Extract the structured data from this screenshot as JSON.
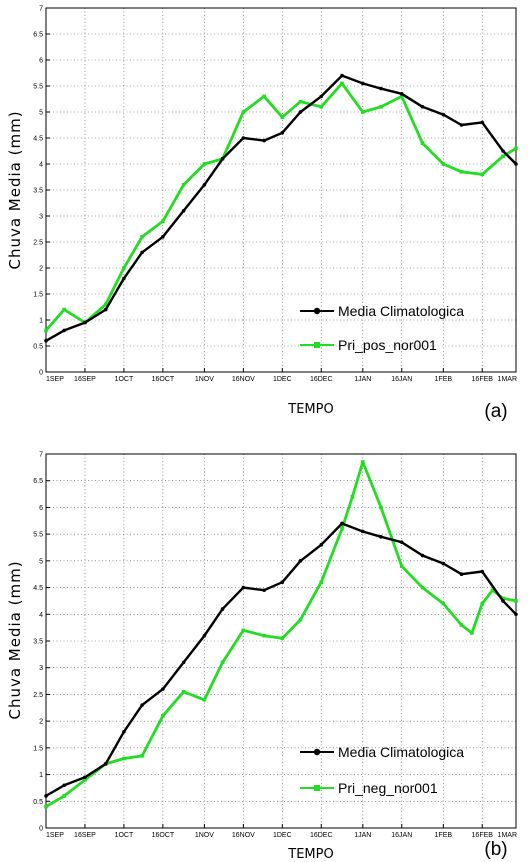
{
  "chart_data": [
    {
      "type": "line",
      "panel_label": "(a)",
      "xlabel": "TEMPO",
      "ylabel": "Chuva Media (mm)",
      "ylim": [
        0,
        7
      ],
      "yticks": [
        "0",
        "0.5",
        "1",
        "1.5",
        "2",
        "2.5",
        "3",
        "3.5",
        "4",
        "4.5",
        "5",
        "5.5",
        "6",
        "6.5",
        "7"
      ],
      "xticks": [
        "1SEP",
        "16SEP",
        "1OCT",
        "16OCT",
        "1NOV",
        "16NOV",
        "1DEC",
        "16DEC",
        "1JAN",
        "16JAN",
        "1FEB",
        "16FEB",
        "1MAR"
      ],
      "grid": true,
      "legend_position": "bottom-right",
      "series": [
        {
          "name": "Media Climatologica",
          "color": "#000000",
          "marker": "circle",
          "x": [
            "1SEP",
            "8SEP",
            "16SEP",
            "24SEP",
            "1OCT",
            "8OCT",
            "16OCT",
            "24OCT",
            "1NOV",
            "8NOV",
            "16NOV",
            "24NOV",
            "1DEC",
            "8DEC",
            "16DEC",
            "24DEC",
            "1JAN",
            "8JAN",
            "16JAN",
            "24JAN",
            "1FEB",
            "8FEB",
            "16FEB",
            "24FEB",
            "1MAR"
          ],
          "y": [
            0.6,
            0.8,
            0.95,
            1.2,
            1.8,
            2.3,
            2.6,
            3.1,
            3.6,
            4.1,
            4.5,
            4.45,
            4.6,
            5.0,
            5.3,
            5.7,
            5.55,
            5.45,
            5.35,
            5.1,
            4.95,
            4.75,
            4.8,
            4.25,
            4.0
          ]
        },
        {
          "name": "Pri_pos_nor001",
          "color": "#22dd22",
          "marker": "square",
          "x": [
            "1SEP",
            "8SEP",
            "16SEP",
            "24SEP",
            "1OCT",
            "8OCT",
            "16OCT",
            "24OCT",
            "1NOV",
            "8NOV",
            "16NOV",
            "24NOV",
            "1DEC",
            "8DEC",
            "16DEC",
            "24DEC",
            "1JAN",
            "8JAN",
            "16JAN",
            "24JAN",
            "1FEB",
            "8FEB",
            "16FEB",
            "24FEB",
            "1MAR"
          ],
          "y": [
            0.8,
            1.2,
            0.95,
            1.3,
            2.0,
            2.6,
            2.9,
            3.6,
            4.0,
            4.1,
            5.0,
            5.3,
            4.9,
            5.2,
            5.1,
            5.55,
            5.0,
            5.1,
            5.3,
            4.4,
            4.0,
            3.85,
            3.8,
            4.15,
            4.3
          ]
        }
      ]
    },
    {
      "type": "line",
      "panel_label": "(b)",
      "xlabel": "TEMPO",
      "ylabel": "Chuva Media (mm)",
      "ylim": [
        0,
        7
      ],
      "yticks": [
        "0",
        "0.5",
        "1",
        "1.5",
        "2",
        "2.5",
        "3",
        "3.5",
        "4",
        "4.5",
        "5",
        "5.5",
        "6",
        "6.5",
        "7"
      ],
      "xticks": [
        "1SEP",
        "16SEP",
        "1OCT",
        "16OCT",
        "1NOV",
        "16NOV",
        "1DEC",
        "16DEC",
        "1JAN",
        "16JAN",
        "1FEB",
        "16FEB",
        "1MAR"
      ],
      "grid": true,
      "legend_position": "bottom-right",
      "series": [
        {
          "name": "Media Climatologica",
          "color": "#000000",
          "marker": "circle",
          "x": [
            "1SEP",
            "8SEP",
            "16SEP",
            "24SEP",
            "1OCT",
            "8OCT",
            "16OCT",
            "24OCT",
            "1NOV",
            "8NOV",
            "16NOV",
            "24NOV",
            "1DEC",
            "8DEC",
            "16DEC",
            "24DEC",
            "1JAN",
            "8JAN",
            "16JAN",
            "24JAN",
            "1FEB",
            "8FEB",
            "16FEB",
            "24FEB",
            "1MAR"
          ],
          "y": [
            0.6,
            0.8,
            0.95,
            1.2,
            1.8,
            2.3,
            2.6,
            3.1,
            3.6,
            4.1,
            4.5,
            4.45,
            4.6,
            5.0,
            5.3,
            5.7,
            5.55,
            5.45,
            5.35,
            5.1,
            4.95,
            4.75,
            4.8,
            4.25,
            4.0
          ]
        },
        {
          "name": "Pri_neg_nor001",
          "color": "#22dd22",
          "marker": "square",
          "x": [
            "1SEP",
            "8SEP",
            "16SEP",
            "24SEP",
            "1OCT",
            "8OCT",
            "16OCT",
            "24OCT",
            "1NOV",
            "8NOV",
            "16NOV",
            "24NOV",
            "1DEC",
            "8DEC",
            "16DEC",
            "24DEC",
            "28DEC",
            "1JAN",
            "8JAN",
            "16JAN",
            "24JAN",
            "1FEB",
            "8FEB",
            "12FEB",
            "16FEB",
            "20FEB",
            "24FEB",
            "1MAR"
          ],
          "y": [
            0.4,
            0.6,
            0.9,
            1.2,
            1.3,
            1.35,
            2.1,
            2.55,
            2.4,
            3.1,
            3.7,
            3.6,
            3.55,
            3.9,
            4.6,
            5.6,
            6.2,
            6.85,
            6.0,
            4.9,
            4.5,
            4.2,
            3.8,
            3.65,
            4.2,
            4.45,
            4.3,
            4.25
          ]
        }
      ]
    }
  ]
}
